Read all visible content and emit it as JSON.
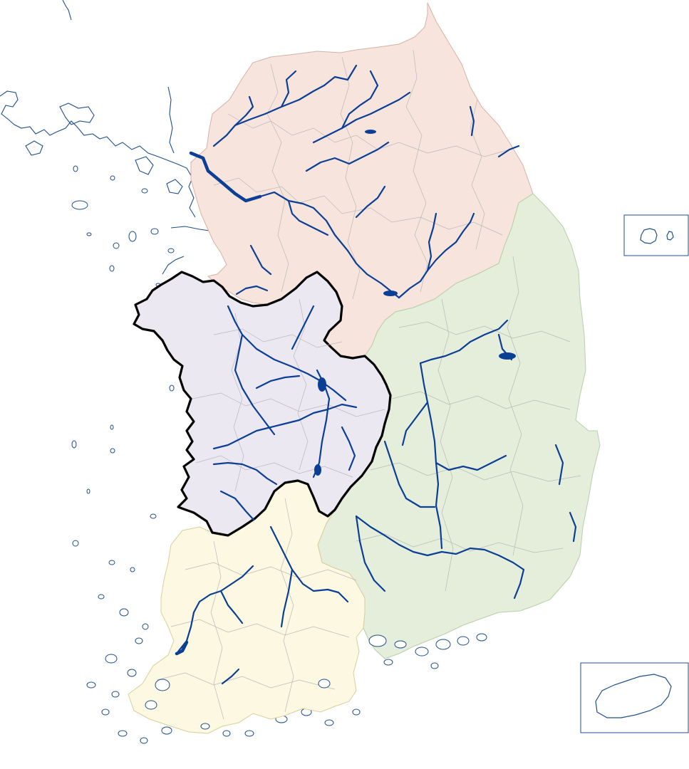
{
  "map": {
    "colors": {
      "background": "#ffffff",
      "water_line": "#0b3f96",
      "coast_line": "#1f4e8f",
      "subdivision_line": "#b9b9b9",
      "highlight_border": "#000000"
    },
    "regions": [
      {
        "name": "north",
        "fill": "#f7e4dd",
        "highlighted": false
      },
      {
        "name": "east",
        "fill": "#e4eedb",
        "highlighted": false
      },
      {
        "name": "central-west",
        "fill": "#ece8f2",
        "highlighted": true
      },
      {
        "name": "southwest",
        "fill": "#fdf8e1",
        "highlighted": false
      }
    ],
    "insets": [
      {
        "name": "ulleungdo-dokdo",
        "position": "right-middle"
      },
      {
        "name": "jeju",
        "position": "bottom-right"
      }
    ]
  }
}
